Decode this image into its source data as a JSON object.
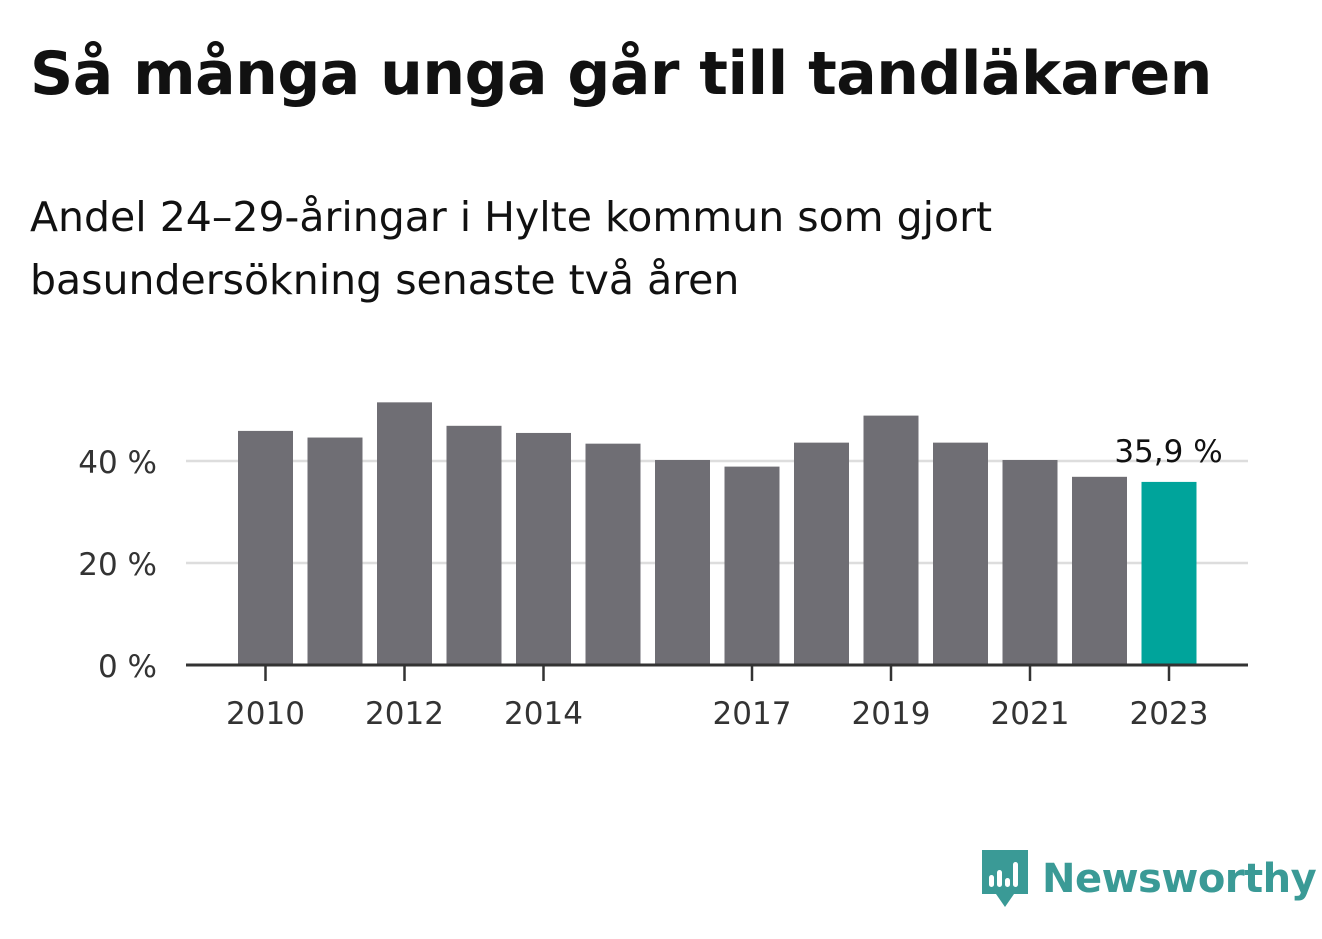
{
  "title": "Så många unga går till tandläkaren",
  "subtitle": "Andel 24–29-åringar i Hylte kommun som gjort basundersökning senaste två åren",
  "brand": {
    "name": "Newsworthy",
    "icon": "newsworthy-logo-icon",
    "color": "#3a9a96"
  },
  "colors": {
    "bar": "#6f6e74",
    "highlight": "#00a49b",
    "grid": "#dddddd",
    "axis": "#333333"
  },
  "chart_data": {
    "type": "bar",
    "categories": [
      "2010",
      "2011",
      "2012",
      "2013",
      "2014",
      "2015",
      "2016",
      "2017",
      "2018",
      "2019",
      "2020",
      "2021",
      "2022",
      "2023"
    ],
    "values": [
      45.9,
      44.6,
      51.5,
      46.9,
      45.5,
      43.4,
      40.2,
      38.9,
      43.6,
      48.9,
      43.6,
      40.2,
      36.9,
      35.9
    ],
    "x_tick_labels": [
      "2010",
      "2012",
      "2014",
      "2017",
      "2019",
      "2021",
      "2023"
    ],
    "y_ticks": [
      0,
      20,
      40
    ],
    "y_tick_labels": [
      "0 %",
      "20 %",
      "40 %"
    ],
    "ylim": [
      0,
      55
    ],
    "grid": true,
    "highlight_index": 13,
    "annotation": {
      "category": "2023",
      "text": "35,9 %"
    }
  }
}
